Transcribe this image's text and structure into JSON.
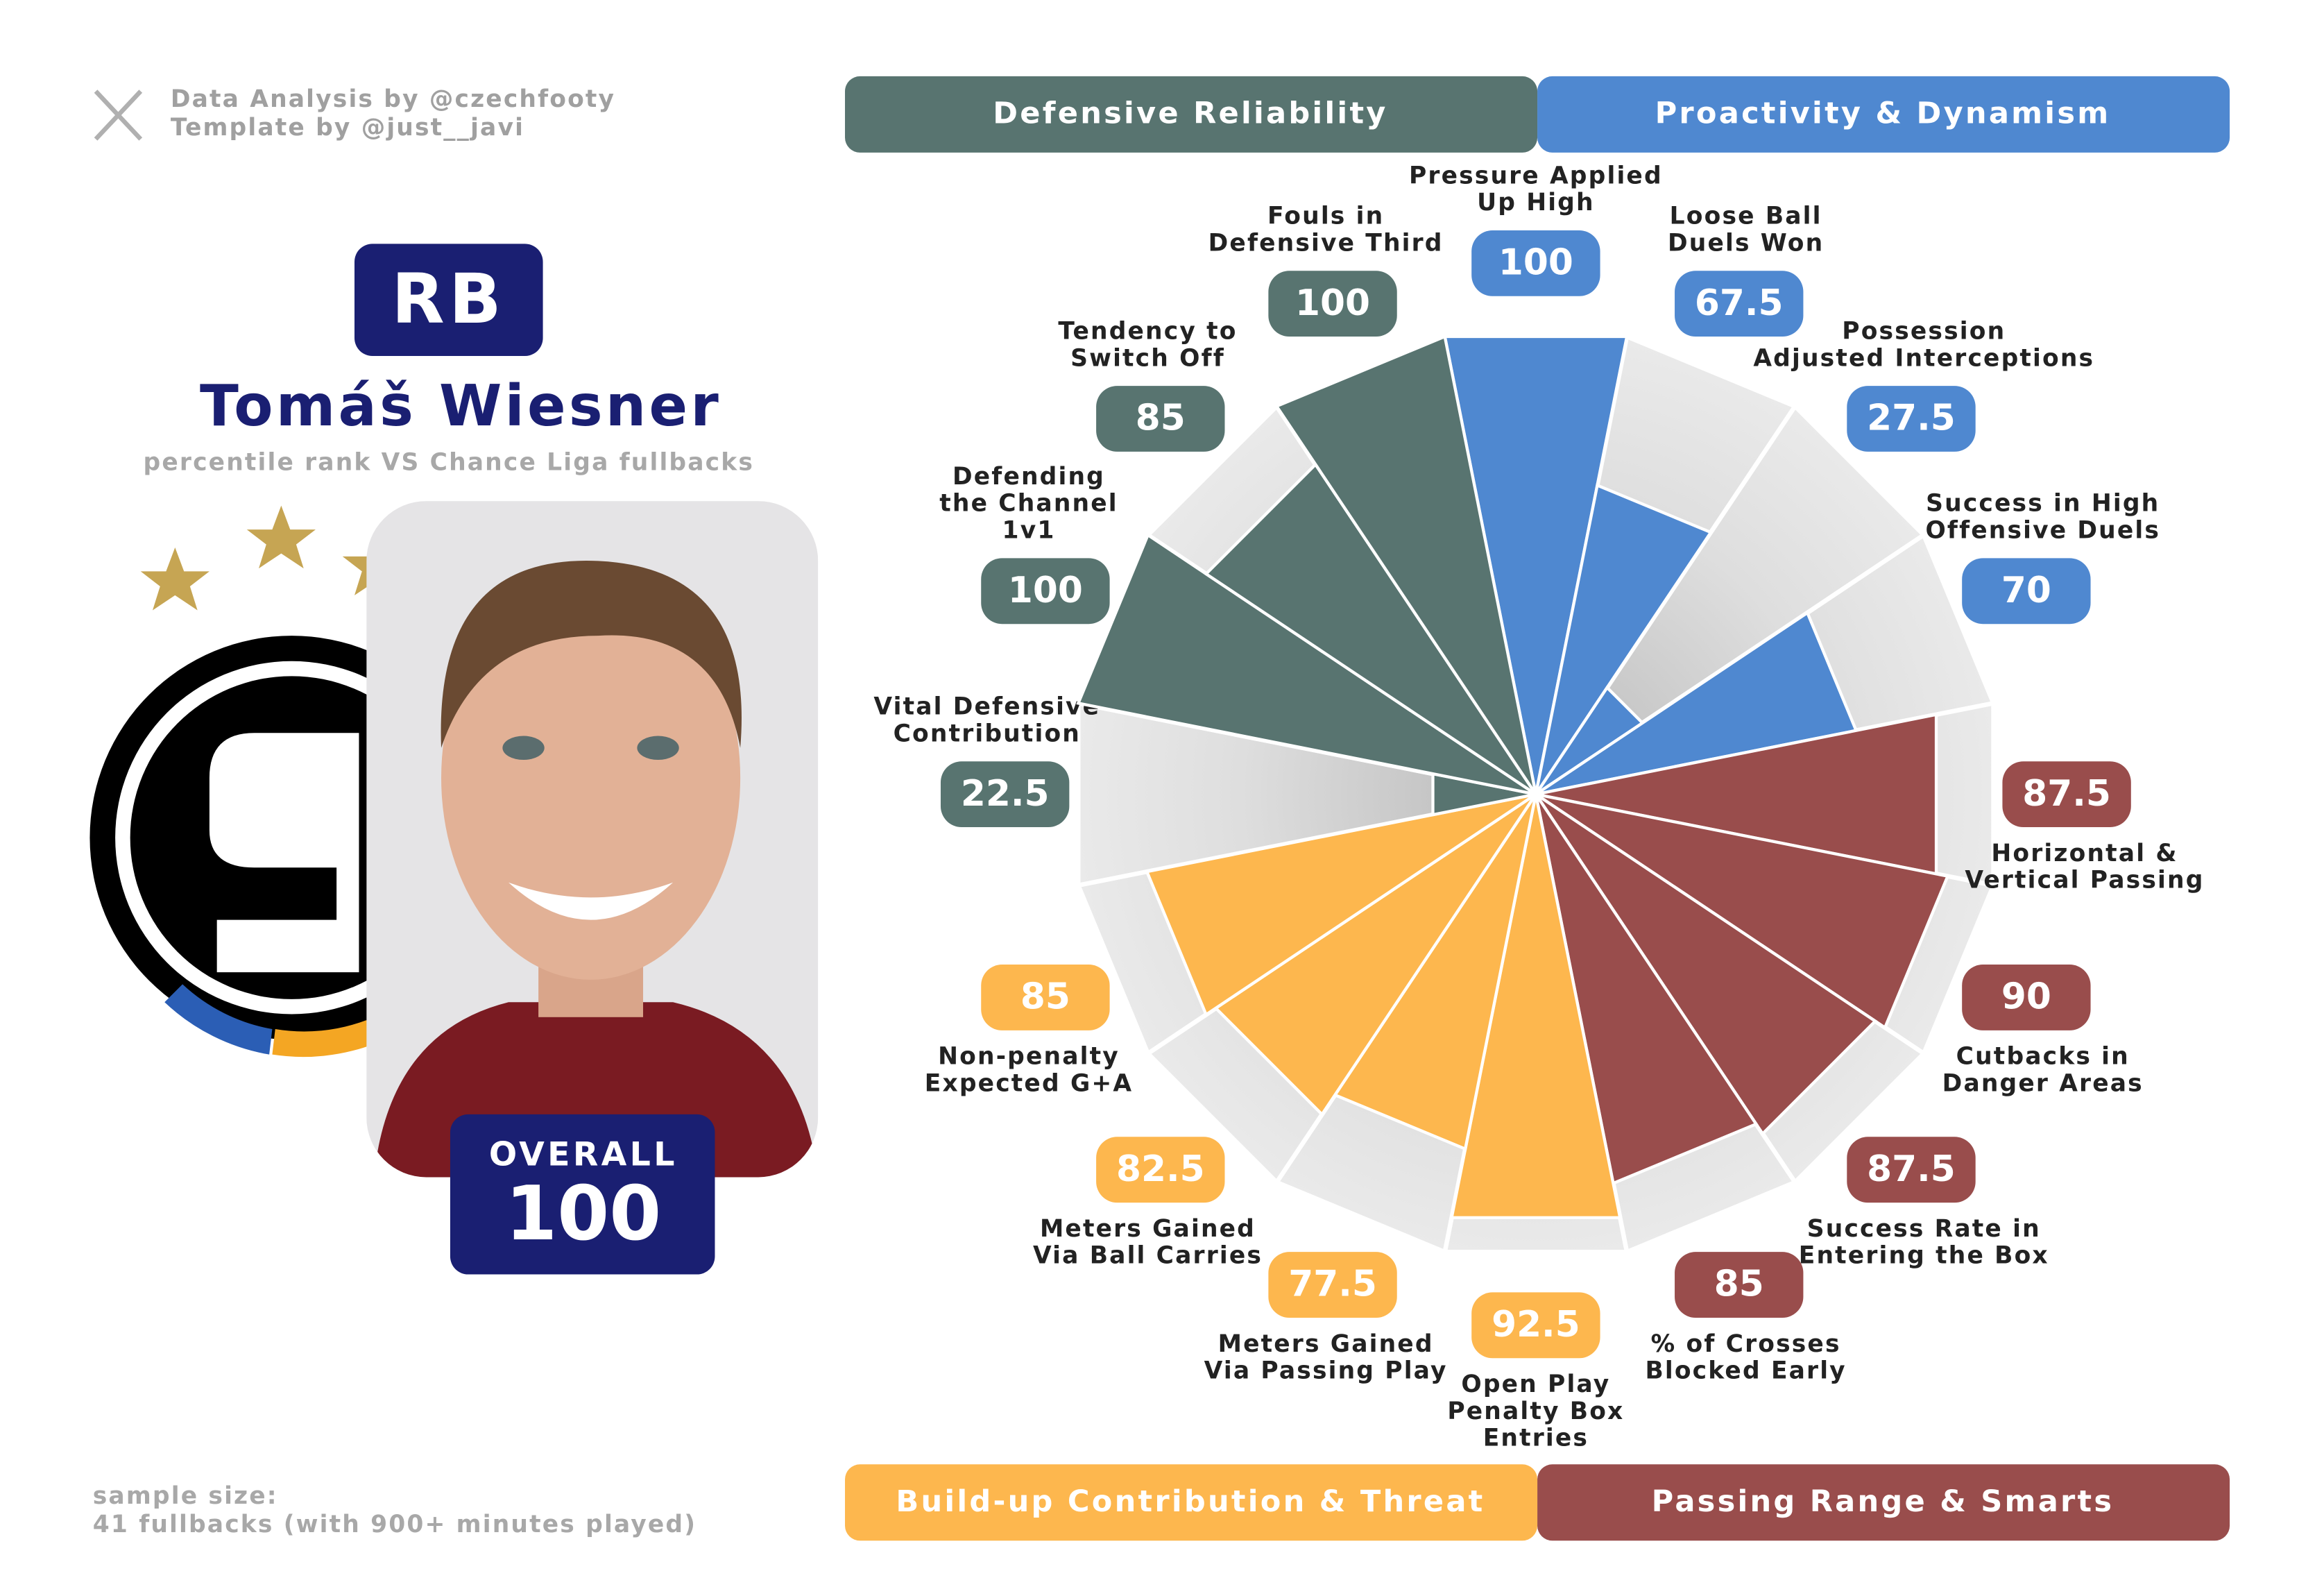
{
  "credits": [
    "Data Analysis by @czechfooty",
    "Template by @just__javi"
  ],
  "player": {
    "position": "RB",
    "name": "Tomáš Wiesner",
    "subtitle": "percentile rank VS Chance Liga fullbacks",
    "overall_label": "OVERALL",
    "overall": 100
  },
  "footnote": [
    "sample size:",
    "41 fullbacks (with 900+ minutes played)"
  ],
  "chart_data": {
    "type": "polar_bar",
    "ylim": [
      0,
      100
    ],
    "series": [
      {
        "name": "Proactivity & Dynamism",
        "color": "#4f88d0",
        "categories": [
          [
            "Pressure Applied",
            "Up High"
          ],
          [
            "Loose Ball",
            "Duels Won"
          ],
          [
            "Possession",
            "Adjusted Interceptions"
          ],
          [
            "Success in High",
            "Offensive Duels"
          ]
        ],
        "values": [
          100,
          67.5,
          27.5,
          70
        ]
      },
      {
        "name": "Passing Range & Smarts",
        "color": "#994d4c",
        "categories": [
          [
            "Horizontal &",
            "Vertical Passing"
          ],
          [
            "Cutbacks in",
            "Danger Areas"
          ],
          [
            "Success Rate in",
            "Entering the Box"
          ],
          [
            "% of Crosses",
            "Blocked Early"
          ]
        ],
        "values": [
          87.5,
          90,
          87.5,
          85
        ]
      },
      {
        "name": "Build-up Contribution & Threat",
        "color": "#fdb74e",
        "categories": [
          [
            "Open Play",
            "Penalty Box",
            "Entries"
          ],
          [
            "Meters Gained",
            "Via Passing Play"
          ],
          [
            "Meters Gained",
            "Via Ball Carries"
          ],
          [
            "Non-penalty",
            "Expected G+A"
          ]
        ],
        "values": [
          92.5,
          77.5,
          82.5,
          85
        ]
      },
      {
        "name": "Defensive Reliability",
        "color": "#587470",
        "categories": [
          [
            "Vital Defensive",
            "Contribution"
          ],
          [
            "Defending",
            "the Channel",
            "1v1"
          ],
          [
            "Tendency to",
            "Switch Off"
          ],
          [
            "Fouls in",
            "Defensive Third"
          ]
        ],
        "values": [
          22.5,
          100,
          85,
          100
        ]
      }
    ]
  }
}
